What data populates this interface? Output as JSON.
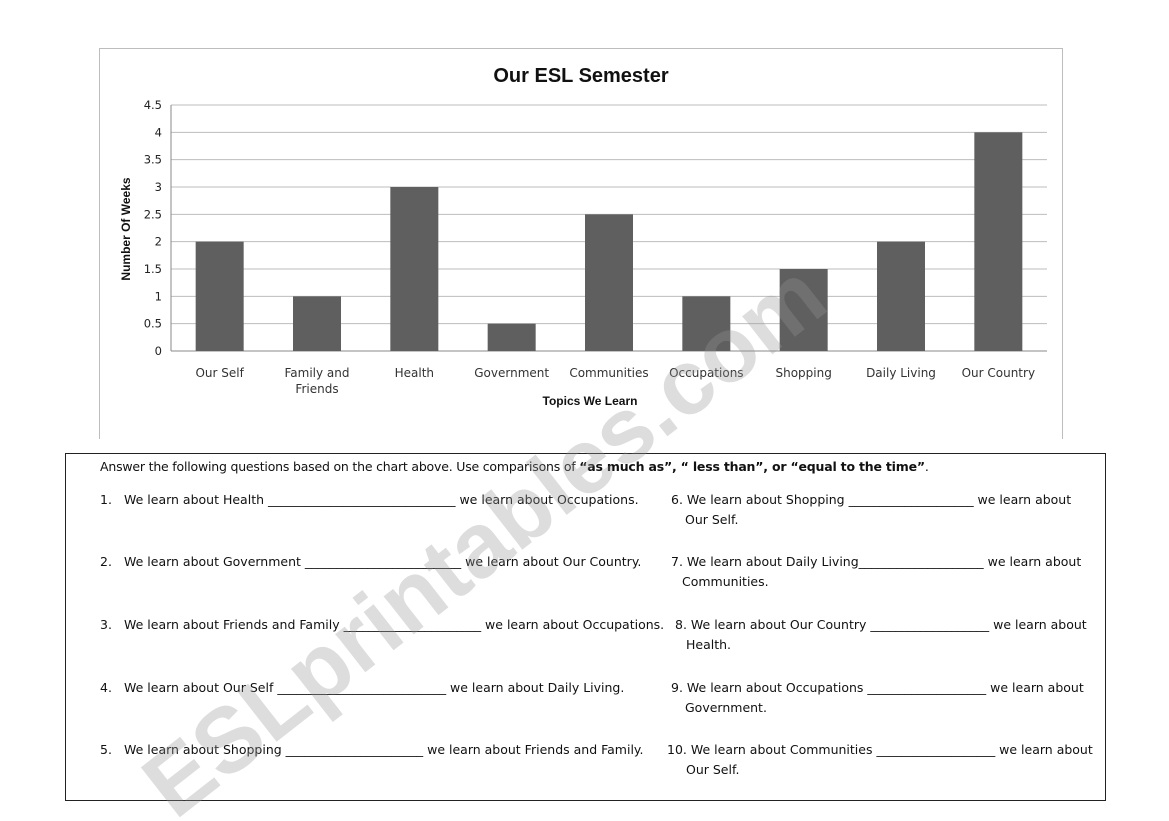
{
  "chart_data": {
    "type": "bar",
    "title": "Our ESL Semester",
    "xlabel": "Topics We Learn",
    "ylabel": "Number Of Weeks",
    "categories": [
      "Our Self",
      "Family and Friends",
      "Health",
      "Government",
      "Communities",
      "Occupations",
      "Shopping",
      "Daily Living",
      "Our Country"
    ],
    "values": [
      2,
      1,
      3,
      0.5,
      2.5,
      1,
      1.5,
      2,
      4
    ],
    "ylim": [
      0,
      4.5
    ],
    "yticks": [
      "0",
      "0.5",
      "1",
      "1.5",
      "2",
      "2.5",
      "3",
      "3.5",
      "4",
      "4.5"
    ],
    "grid": true,
    "legend": "none",
    "bar_color": "#5f5f5f"
  },
  "worksheet": {
    "instructions_prefix": "Answer the following questions based on the chart above.  Use comparisons of ",
    "instructions_bold": "“as much as”, “ less than”, or “equal to the time”",
    "instructions_suffix": ".",
    "questions": [
      {
        "num": "1.",
        "text": "We learn about Health ______________________________ we learn about Occupations."
      },
      {
        "num": "2.",
        "text": "We learn about Government _________________________ we learn about Our Country."
      },
      {
        "num": "3.",
        "text": "We learn about Friends and Family ______________________ we learn about Occupations."
      },
      {
        "num": "4.",
        "text": "We learn about Our Self ___________________________ we learn about Daily Living."
      },
      {
        "num": "5.",
        "text": "We learn about Shopping ______________________ we learn about Friends and Family."
      },
      {
        "num": "6.",
        "text": "We learn about Shopping ____________________ we learn about",
        "cont": "Our  Self."
      },
      {
        "num": "7.",
        "text": "We learn about Daily Living____________________ we learn about",
        "cont": "Communities."
      },
      {
        "num": "8.",
        "text": "We learn about Our Country ___________________ we learn about",
        "cont": "Health."
      },
      {
        "num": "9.",
        "text": "We learn about Occupations ___________________ we learn about",
        "cont": "Government."
      },
      {
        "num": "10.",
        "text": "We learn about Communities ___________________ we learn about",
        "cont": "Our Self."
      }
    ]
  },
  "watermark": {
    "text": "ESLprintables.com"
  }
}
